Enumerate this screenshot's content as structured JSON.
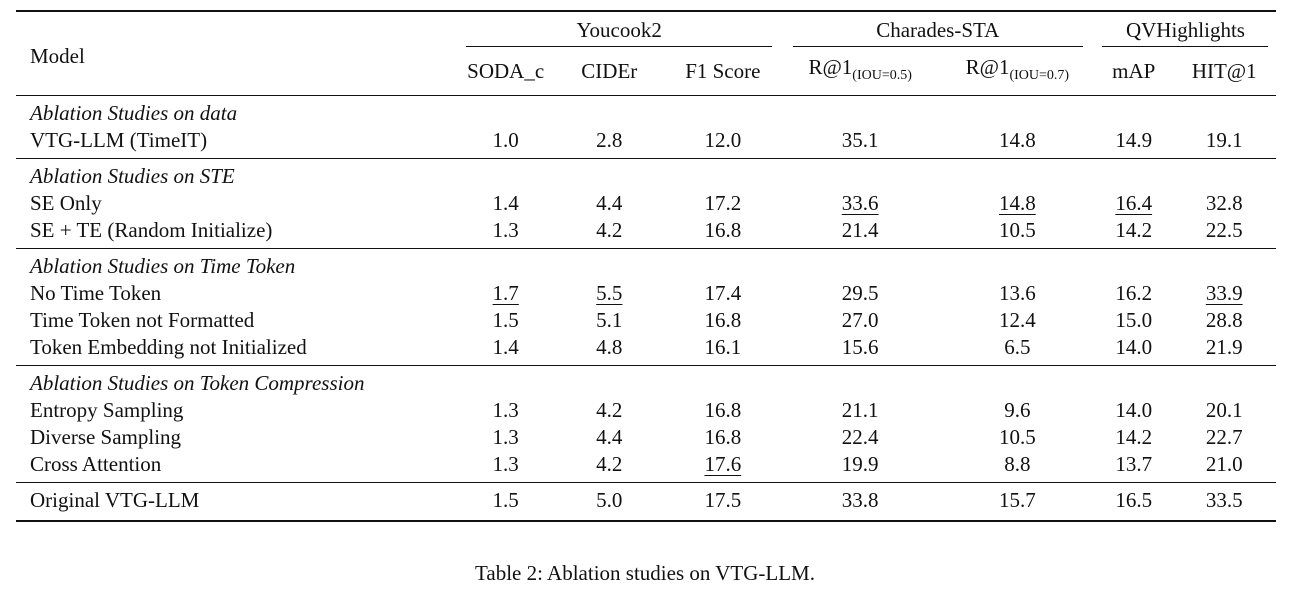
{
  "header": {
    "model_label": "Model",
    "groups": [
      {
        "label": "Youcook2"
      },
      {
        "label": "Charades-STA"
      },
      {
        "label": "QVHighlights"
      }
    ],
    "columns": {
      "soda": "SODA_c",
      "cider": "CIDEr",
      "f1": "F1 Score",
      "r1_05": {
        "base": "R@1",
        "sub": "(IOU=0.5)"
      },
      "r1_07": {
        "base": "R@1",
        "sub": "(IOU=0.7)"
      },
      "map": "mAP",
      "hit": "HIT@1"
    }
  },
  "sections": [
    {
      "title": "Ablation Studies on data",
      "rows": [
        {
          "model": "VTG-LLM (TimeIT)",
          "values": [
            "1.0",
            "2.8",
            "12.0",
            "35.1",
            "14.8",
            "14.9",
            "19.1"
          ],
          "underline": [
            false,
            false,
            false,
            false,
            false,
            false,
            false
          ]
        }
      ]
    },
    {
      "title": "Ablation Studies on STE",
      "rows": [
        {
          "model": "SE Only",
          "values": [
            "1.4",
            "4.4",
            "17.2",
            "33.6",
            "14.8",
            "16.4",
            "32.8"
          ],
          "underline": [
            false,
            false,
            false,
            true,
            true,
            true,
            false
          ]
        },
        {
          "model": "SE + TE (Random Initialize)",
          "values": [
            "1.3",
            "4.2",
            "16.8",
            "21.4",
            "10.5",
            "14.2",
            "22.5"
          ],
          "underline": [
            false,
            false,
            false,
            false,
            false,
            false,
            false
          ]
        }
      ]
    },
    {
      "title": "Ablation Studies on Time Token",
      "rows": [
        {
          "model": "No Time Token",
          "values": [
            "1.7",
            "5.5",
            "17.4",
            "29.5",
            "13.6",
            "16.2",
            "33.9"
          ],
          "underline": [
            true,
            true,
            false,
            false,
            false,
            false,
            true
          ]
        },
        {
          "model": "Time Token not Formatted",
          "values": [
            "1.5",
            "5.1",
            "16.8",
            "27.0",
            "12.4",
            "15.0",
            "28.8"
          ],
          "underline": [
            false,
            false,
            false,
            false,
            false,
            false,
            false
          ]
        },
        {
          "model": "Token Embedding not Initialized",
          "values": [
            "1.4",
            "4.8",
            "16.1",
            "15.6",
            "6.5",
            "14.0",
            "21.9"
          ],
          "underline": [
            false,
            false,
            false,
            false,
            false,
            false,
            false
          ]
        }
      ]
    },
    {
      "title": "Ablation Studies on Token Compression",
      "rows": [
        {
          "model": "Entropy Sampling",
          "values": [
            "1.3",
            "4.2",
            "16.8",
            "21.1",
            "9.6",
            "14.0",
            "20.1"
          ],
          "underline": [
            false,
            false,
            false,
            false,
            false,
            false,
            false
          ]
        },
        {
          "model": "Diverse Sampling",
          "values": [
            "1.3",
            "4.4",
            "16.8",
            "22.4",
            "10.5",
            "14.2",
            "22.7"
          ],
          "underline": [
            false,
            false,
            false,
            false,
            false,
            false,
            false
          ]
        },
        {
          "model": "Cross Attention",
          "values": [
            "1.3",
            "4.2",
            "17.6",
            "19.9",
            "8.8",
            "13.7",
            "21.0"
          ],
          "underline": [
            false,
            false,
            true,
            false,
            false,
            false,
            false
          ]
        }
      ]
    }
  ],
  "final_row": {
    "model": "Original VTG-LLM",
    "values": [
      "1.5",
      "5.0",
      "17.5",
      "33.8",
      "15.7",
      "16.5",
      "33.5"
    ]
  },
  "caption": "Table 2: Ablation studies on VTG-LLM."
}
